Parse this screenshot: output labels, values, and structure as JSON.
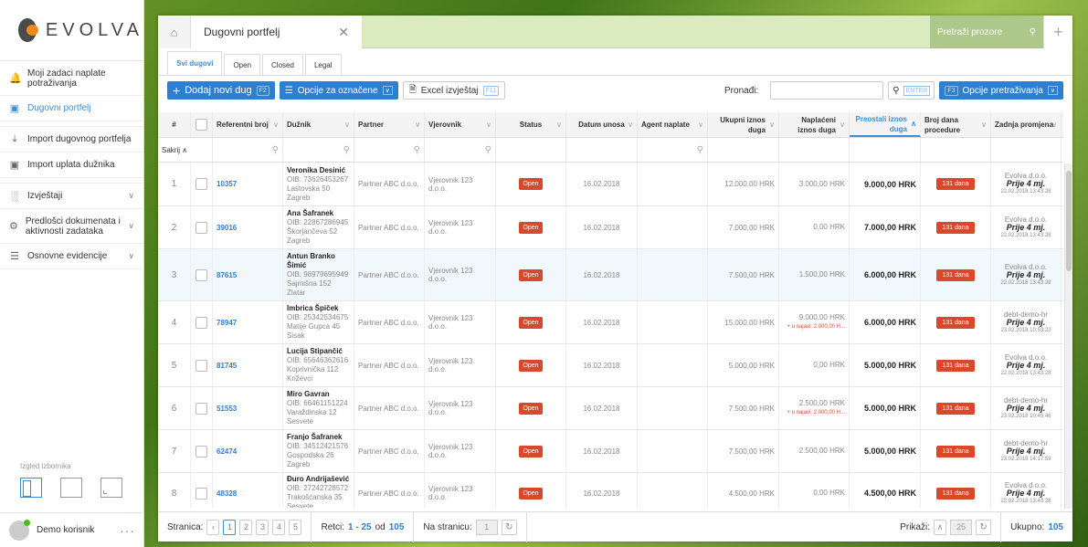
{
  "app": {
    "logo_text": "EVOLVA"
  },
  "sidebar": {
    "items": [
      {
        "label": "Moji zadaci naplate potraživanja",
        "icon": "bell-icon"
      },
      {
        "label": "Dugovni portfelj",
        "icon": "briefcase-icon"
      },
      {
        "label": "Import dugovnog portfelja",
        "icon": "upload-icon"
      },
      {
        "label": "Import uplata dužnika",
        "icon": "money-icon"
      },
      {
        "label": "Izvještaji",
        "icon": "bar-chart-icon"
      },
      {
        "label": "Predlošci dokumenata i aktivnosti zadataka",
        "icon": "gear-icon"
      },
      {
        "label": "Osnovne evidencije",
        "icon": "list-icon"
      }
    ],
    "layout_label": "Izgled izbornika",
    "user_name": "Demo korisnik",
    "more": "···"
  },
  "window": {
    "tab_title": "Dugovni portfelj",
    "search_placeholder": "Pretraži prozore"
  },
  "filter_tabs": [
    "Svi dugovi",
    "Open",
    "Closed",
    "Legal"
  ],
  "toolbar": {
    "add_label": "Dodaj novi dug",
    "add_key": "F2",
    "options_label": "Opcije za označene",
    "excel_label": "Excel izvještaj",
    "excel_key": "F11",
    "find_label": "Pronađi:",
    "enter_key": "ENTER",
    "search_options_key": "F3",
    "search_options_label": "Opcije pretraživanja"
  },
  "table": {
    "columns": [
      "#",
      "Referentni broj",
      "Dužnik",
      "Partner",
      "Vjerovnik",
      "Status",
      "Datum unosa",
      "Agent naplate",
      "Ukupni iznos duga",
      "Naplaćeni iznos duga",
      "Preostali iznos duga",
      "Broj dana procedure",
      "Zadnja promjena"
    ],
    "hide_label": "Sakrij",
    "rows": [
      {
        "num": "1",
        "ref": "10357",
        "name": "Veronika Desinić",
        "oib": "OIB: 73626453267",
        "addr1": "Lastovska 50",
        "addr2": "Zagreb",
        "partner": "Partner ABC d.o.o.",
        "creditor": "Vjerovnik 123 d.o.o.",
        "status": "Open",
        "date": "16.02.2018",
        "agent": "",
        "total": "12.000,00 HRK",
        "paid": "3.000,00 HRK",
        "notice": "",
        "remain": "9.000,00 HRK",
        "days": "131 dana",
        "lc_who": "Evolva d.o.o.",
        "lc_when": "Prije 4 mj.",
        "lc_ts": "22.02.2018 13:43:28"
      },
      {
        "num": "2",
        "ref": "39016",
        "name": "Ana Šafranek",
        "oib": "OIB: 22867286945",
        "addr1": "Škorjančeva 52",
        "addr2": "Zagreb",
        "partner": "Partner ABC d.o.o.",
        "creditor": "Vjerovnik 123 d.o.o.",
        "status": "Open",
        "date": "16.02.2018",
        "agent": "",
        "total": "7.000,00 HRK",
        "paid": "0,00 HRK",
        "notice": "",
        "remain": "7.000,00 HRK",
        "days": "131 dana",
        "lc_who": "Evolva d.o.o.",
        "lc_when": "Prije 4 mj.",
        "lc_ts": "22.02.2018 13:43:28"
      },
      {
        "num": "3",
        "ref": "87615",
        "name": "Antun Branko Šimić",
        "oib": "OIB: 98979695949",
        "addr1": "Sajmišna 152",
        "addr2": "Zlatar",
        "partner": "Partner ABC d.o.o.",
        "creditor": "Vjerovnik 123 d.o.o.",
        "status": "Open",
        "date": "16.02.2018",
        "agent": "",
        "total": "7.500,00 HRK",
        "paid": "1.500,00 HRK",
        "notice": "",
        "remain": "6.000,00 HRK",
        "days": "131 dana",
        "lc_who": "Evolva d.o.o.",
        "lc_when": "Prije 4 mj.",
        "lc_ts": "22.02.2018 13:43:28"
      },
      {
        "num": "4",
        "ref": "78947",
        "name": "Imbrica Špiček",
        "oib": "OIB: 25342534675",
        "addr1": "Matije Gupca 45",
        "addr2": "Sisak",
        "partner": "Partner ABC d.o.o.",
        "creditor": "Vjerovnik 123 d.o.o.",
        "status": "Open",
        "date": "16.02.2018",
        "agent": "",
        "total": "15.000,00 HRK",
        "paid": "9.000,00 HRK",
        "notice": "+ u najavi: 2.000,00 H...",
        "remain": "6.000,00 HRK",
        "days": "131 dana",
        "lc_who": "debt-demo-hr",
        "lc_when": "Prije 4 mj.",
        "lc_ts": "23.02.2018 10:53:22"
      },
      {
        "num": "5",
        "ref": "81745",
        "name": "Lucija Stipančić",
        "oib": "OIB: 65646362616",
        "addr1": "Koprivnička 112",
        "addr2": "Križevci",
        "partner": "Partner ABC d.o.o.",
        "creditor": "Vjerovnik 123 d.o.o.",
        "status": "Open",
        "date": "16.02.2018",
        "agent": "",
        "total": "5.000,00 HRK",
        "paid": "0,00 HRK",
        "notice": "",
        "remain": "5.000,00 HRK",
        "days": "131 dana",
        "lc_who": "Evolva d.o.o.",
        "lc_when": "Prije 4 mj.",
        "lc_ts": "22.02.2018 13:43:28"
      },
      {
        "num": "6",
        "ref": "51553",
        "name": "Miro Gavran",
        "oib": "OIB: 66461151224",
        "addr1": "Varaždinska 12",
        "addr2": "Sesvete",
        "partner": "Partner ABC d.o.o.",
        "creditor": "Vjerovnik 123 d.o.o.",
        "status": "Open",
        "date": "16.02.2018",
        "agent": "",
        "total": "7.500,00 HRK",
        "paid": "2.500,00 HRK",
        "notice": "+ u najavi: 2.000,00 H...",
        "remain": "5.000,00 HRK",
        "days": "131 dana",
        "lc_who": "debt-demo-hr",
        "lc_when": "Prije 4 mj.",
        "lc_ts": "23.02.2018 10:45:46"
      },
      {
        "num": "7",
        "ref": "62474",
        "name": "Franjo Šafranek",
        "oib": "OIB: 34512421576",
        "addr1": "Gospodska 26",
        "addr2": "Zagreb",
        "partner": "Partner ABC d.o.o.",
        "creditor": "Vjerovnik 123 d.o.o.",
        "status": "Open",
        "date": "16.02.2018",
        "agent": "",
        "total": "7.500,00 HRK",
        "paid": "2.500,00 HRK",
        "notice": "",
        "remain": "5.000,00 HRK",
        "days": "131 dana",
        "lc_who": "debt-demo-hr",
        "lc_when": "Prije 4 mj.",
        "lc_ts": "23.02.2018 14:17:59"
      },
      {
        "num": "8",
        "ref": "48328",
        "name": "Đuro Andrijašević",
        "oib": "OIB: 27242728572",
        "addr1": "Trakošćanska 35",
        "addr2": "Sesvete",
        "partner": "Partner ABC d.o.o.",
        "creditor": "Vjerovnik 123 d.o.o.",
        "status": "Open",
        "date": "16.02.2018",
        "agent": "",
        "total": "4.500,00 HRK",
        "paid": "0,00 HRK",
        "notice": "",
        "remain": "4.500,00 HRK",
        "days": "131 dana",
        "lc_who": "Evolva d.o.o.",
        "lc_when": "Prije 4 mj.",
        "lc_ts": "22.02.2018 13:43:28"
      }
    ]
  },
  "footer": {
    "page_label": "Stranica:",
    "pages": [
      "1",
      "2",
      "3",
      "4",
      "5"
    ],
    "rows_label": "Retci:",
    "rows_range": "1 - 25",
    "rows_of": "od",
    "rows_total": "105",
    "goto_label": "Na stranicu:",
    "goto_value": "1",
    "show_label": "Prikaži:",
    "show_value": "25",
    "total_label": "Ukupno:",
    "total_value": "105"
  }
}
